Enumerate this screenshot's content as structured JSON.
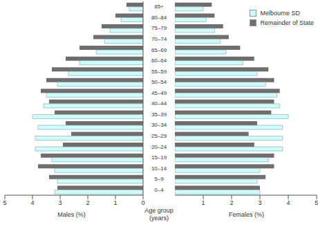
{
  "chart_data": {
    "type": "bar",
    "orientation": "horizontal",
    "y_label": "Age group (years)",
    "legend": "upper right",
    "categories": [
      "85+",
      "80–84",
      "75–79",
      "70–74",
      "65–69",
      "60–64",
      "55–59",
      "50–54",
      "45–49",
      "40–44",
      "35–39",
      "30–34",
      "25–29",
      "20–24",
      "15–19",
      "10–14",
      "5–9",
      "0–4"
    ],
    "panels": [
      {
        "x_label": "Males (%)",
        "xlim": [
          0,
          5
        ],
        "xticks": [
          0,
          1,
          2,
          3,
          4,
          5
        ],
        "series": [
          {
            "name": "Remainder of State",
            "color": "#6e6e6e",
            "values": [
              0.6,
              1.0,
              1.5,
              1.8,
              2.3,
              2.8,
              3.3,
              3.5,
              3.7,
              3.4,
              3.2,
              2.8,
              2.6,
              2.9,
              3.7,
              3.8,
              3.4,
              3.1
            ]
          },
          {
            "name": "Melbourne SD",
            "color": "#ccffff",
            "values": [
              0.5,
              0.8,
              1.2,
              1.4,
              1.7,
              2.3,
              2.7,
              3.1,
              3.5,
              3.6,
              4.0,
              3.8,
              3.9,
              3.9,
              3.3,
              3.2,
              3.1,
              3.2
            ]
          }
        ]
      },
      {
        "x_label": "Females (%)",
        "xlim": [
          0,
          5
        ],
        "xticks": [
          0,
          1,
          2,
          3,
          4,
          5
        ],
        "series": [
          {
            "name": "Remainder of State",
            "color": "#6e6e6e",
            "values": [
              1.3,
              1.4,
              1.7,
              1.9,
              2.3,
              2.8,
              3.3,
              3.5,
              3.7,
              3.5,
              3.4,
              2.9,
              2.6,
              2.8,
              3.5,
              3.5,
              3.2,
              3.0
            ]
          },
          {
            "name": "Melbourne SD",
            "color": "#ccffff",
            "values": [
              1.0,
              1.1,
              1.4,
              1.6,
              1.8,
              2.4,
              2.9,
              3.2,
              3.6,
              3.7,
              4.0,
              3.8,
              3.8,
              3.8,
              3.3,
              3.0,
              2.9,
              3.0
            ]
          }
        ]
      }
    ]
  }
}
